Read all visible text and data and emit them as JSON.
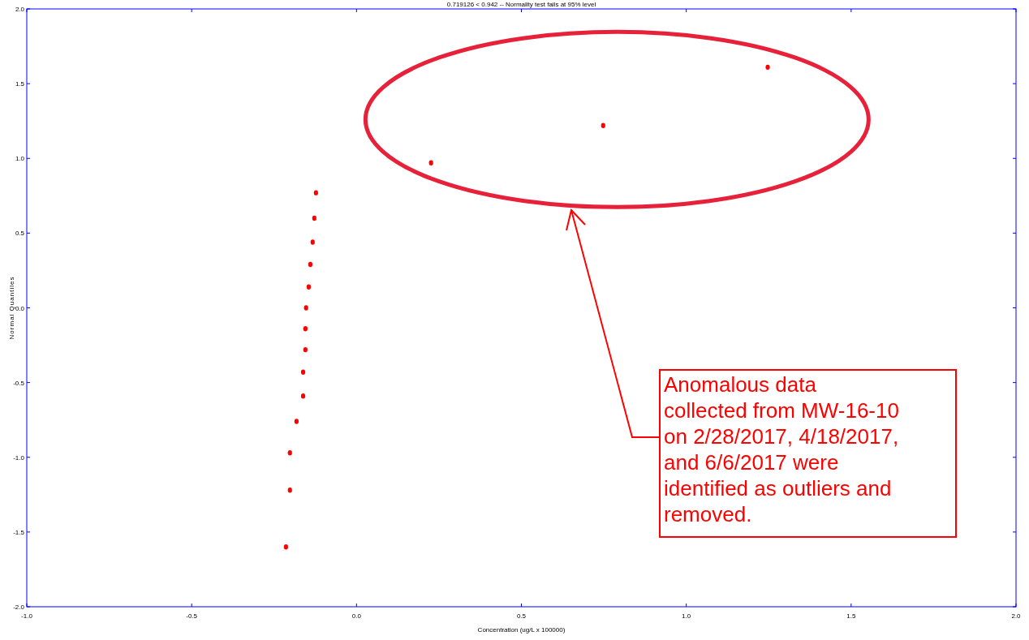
{
  "chart_data": {
    "type": "scatter",
    "title": "0.719126 < 0.942 -- Normality test fails at 95% level",
    "xlabel": "Concentration (ug/L x 100000)",
    "ylabel": "Normal Quantiles",
    "x": [
      -0.214,
      -0.202,
      -0.202,
      -0.182,
      -0.162,
      -0.162,
      -0.155,
      -0.155,
      -0.153,
      -0.145,
      -0.14,
      -0.133,
      -0.128,
      -0.123,
      0.226,
      0.748,
      1.247
    ],
    "series": [
      {
        "color": "#ff0000",
        "values": [
          -1.6,
          -1.22,
          -0.97,
          -0.76,
          -0.59,
          -0.43,
          -0.28,
          -0.14,
          0.0,
          0.14,
          0.29,
          0.44,
          0.6,
          0.77,
          0.97,
          1.22,
          1.61
        ]
      }
    ],
    "marker": "circle",
    "xlim": [
      -1,
      2
    ],
    "ylim": [
      -2,
      2
    ],
    "xticks": [
      {
        "value": -1,
        "label": "-1.0"
      },
      {
        "value": -0.5,
        "label": "-0.5"
      },
      {
        "value": 0,
        "label": "0.0"
      },
      {
        "value": 0.5,
        "label": "0.5"
      },
      {
        "value": 1,
        "label": "1.0"
      },
      {
        "value": 1.5,
        "label": "1.5"
      },
      {
        "value": 2,
        "label": "2.0"
      }
    ],
    "yticks": [
      {
        "value": -2,
        "label": "-2.0"
      },
      {
        "value": -1.5,
        "label": "-1.5"
      },
      {
        "value": -1,
        "label": "-1.0"
      },
      {
        "value": -0.5,
        "label": "-0.5"
      },
      {
        "value": 0,
        "label": "0.0"
      },
      {
        "value": 0.5,
        "label": "0.5"
      },
      {
        "value": 1,
        "label": "1.0"
      },
      {
        "value": 1.5,
        "label": "1.5"
      },
      {
        "value": 2,
        "label": "2.0"
      }
    ],
    "grid": false,
    "annotations": [
      "Anomalous data collected from MW-16-10 on 2/28/2017, 4/18/2017, and 6/6/2017 were identified as outliers and removed."
    ]
  }
}
